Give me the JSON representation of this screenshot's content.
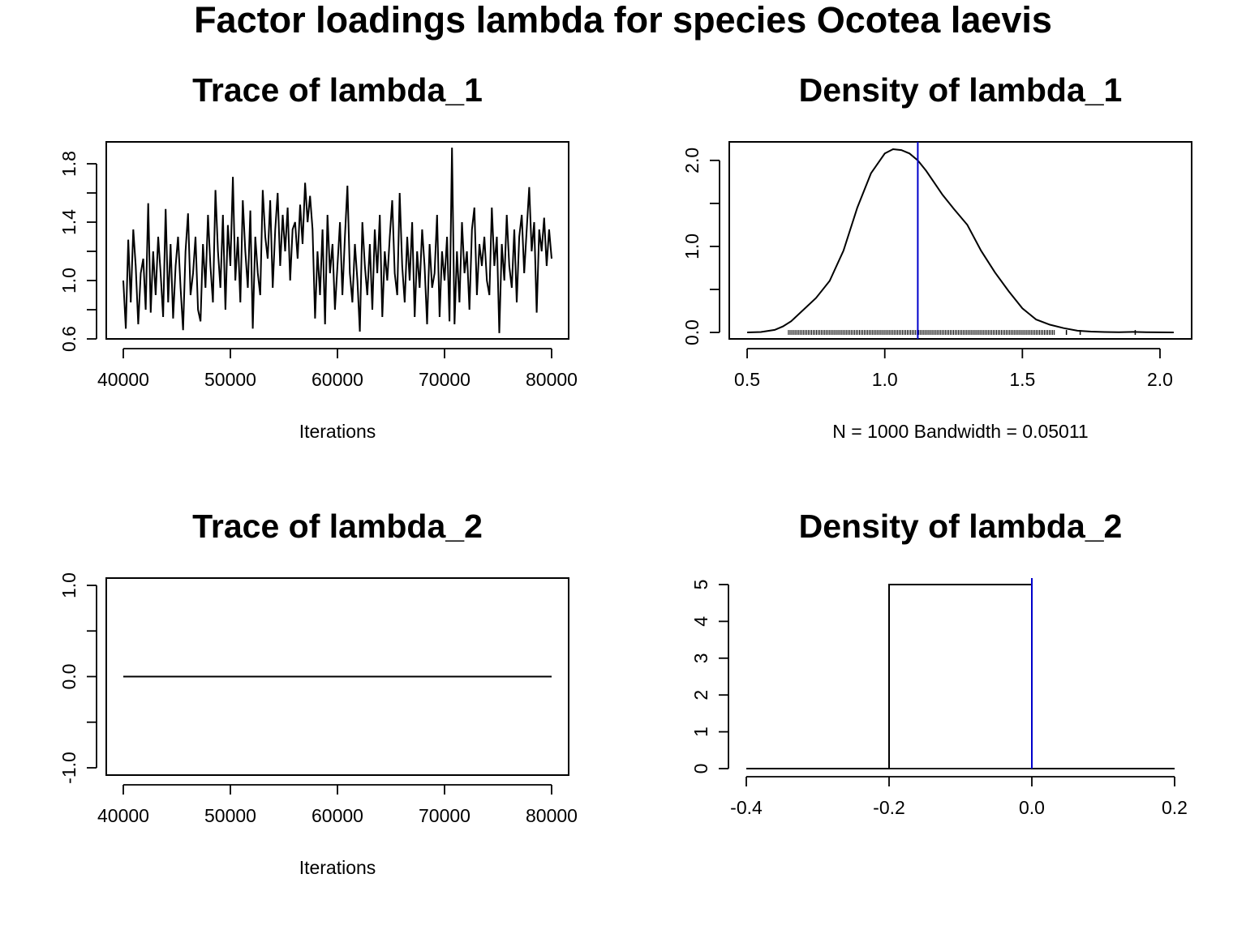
{
  "figure": {
    "title": "Factor loadings lambda for species  Ocotea laevis",
    "colors": {
      "line": "#000000",
      "mean_line": "#0000cc",
      "background": "#ffffff"
    }
  },
  "chart_data": [
    {
      "id": "trace1",
      "type": "line",
      "title": "Trace of lambda_1",
      "xlabel": "Iterations",
      "ylabel": "",
      "xlim": [
        40000,
        80000
      ],
      "ylim": [
        0.6,
        1.95
      ],
      "x_ticks": [
        40000,
        50000,
        60000,
        70000,
        80000
      ],
      "x_tick_labels": [
        "40000",
        "50000",
        "60000",
        "70000",
        "80000"
      ],
      "y_ticks": [
        0.6,
        0.8,
        1.0,
        1.2,
        1.4,
        1.6,
        1.8
      ],
      "y_tick_labels": [
        "0.6",
        "",
        "1.0",
        "",
        "1.4",
        "",
        "1.8"
      ],
      "series": [
        {
          "x_start": 40000,
          "x_end": 80000,
          "values": [
            1.0,
            0.67,
            1.28,
            0.85,
            1.35,
            1.1,
            0.7,
            1.05,
            1.15,
            0.8,
            1.53,
            0.78,
            1.2,
            0.9,
            1.3,
            1.05,
            0.75,
            1.49,
            0.85,
            1.25,
            0.74,
            1.1,
            1.3,
            0.95,
            0.66,
            1.2,
            1.46,
            0.9,
            1.05,
            1.3,
            0.8,
            0.72,
            1.25,
            0.95,
            1.45,
            1.1,
            0.85,
            1.62,
            1.2,
            0.95,
            1.45,
            0.8,
            1.38,
            1.1,
            1.71,
            1.0,
            1.3,
            0.85,
            1.55,
            1.2,
            0.95,
            1.48,
            0.67,
            1.3,
            1.05,
            0.9,
            1.62,
            1.3,
            1.15,
            1.55,
            0.95,
            1.35,
            1.6,
            1.1,
            1.45,
            1.2,
            1.5,
            1.0,
            1.35,
            1.4,
            1.15,
            1.52,
            1.25,
            1.67,
            1.4,
            1.58,
            1.35,
            0.74,
            1.2,
            0.9,
            1.35,
            0.7,
            1.45,
            1.05,
            1.25,
            0.8,
            1.1,
            1.4,
            0.9,
            1.3,
            1.65,
            1.05,
            0.85,
            1.25,
            1.0,
            0.65,
            1.4,
            1.1,
            0.9,
            1.25,
            0.8,
            1.35,
            1.05,
            1.45,
            0.75,
            1.2,
            1.0,
            1.3,
            1.55,
            1.05,
            0.9,
            1.6,
            1.1,
            0.85,
            1.3,
            1.0,
            1.4,
            0.75,
            1.2,
            0.95,
            1.35,
            1.1,
            0.7,
            1.25,
            0.95,
            1.05,
            1.45,
            0.75,
            1.2,
            1.0,
            1.3,
            0.72,
            1.91,
            0.7,
            1.2,
            0.85,
            1.4,
            1.05,
            1.2,
            0.8,
            1.35,
            1.5,
            0.9,
            1.25,
            1.1,
            1.3,
            1.0,
            0.9,
            1.5,
            1.1,
            1.3,
            0.64,
            1.25,
            1.0,
            1.45,
            1.1,
            0.95,
            1.35,
            0.85,
            1.3,
            1.45,
            1.05,
            1.35,
            1.64,
            1.2,
            1.4,
            0.78,
            1.35,
            1.2,
            1.43,
            1.1,
            1.35,
            1.15
          ]
        }
      ]
    },
    {
      "id": "density1",
      "type": "line",
      "title": "Density of lambda_1",
      "xlabel": "N = 1000   Bandwidth = 0.05011",
      "ylabel": "",
      "xlim": [
        0.435,
        2.115
      ],
      "ylim": [
        -0.075,
        2.215
      ],
      "x_ticks": [
        0.5,
        1.0,
        1.5,
        2.0
      ],
      "x_tick_labels": [
        "0.5",
        "1.0",
        "1.5",
        "2.0"
      ],
      "y_ticks": [
        0.0,
        0.5,
        1.0,
        1.5,
        2.0
      ],
      "y_tick_labels": [
        "0.0",
        "",
        "1.0",
        "",
        "2.0"
      ],
      "mean": 1.12,
      "series": [
        {
          "x": [
            0.5,
            0.55,
            0.6,
            0.63,
            0.66,
            0.7,
            0.75,
            0.8,
            0.85,
            0.9,
            0.95,
            1.0,
            1.03,
            1.06,
            1.09,
            1.12,
            1.15,
            1.18,
            1.21,
            1.25,
            1.3,
            1.35,
            1.4,
            1.45,
            1.5,
            1.55,
            1.6,
            1.65,
            1.7,
            1.75,
            1.8,
            1.85,
            1.9,
            1.95,
            2.0,
            2.05
          ],
          "y": [
            0.0,
            0.005,
            0.03,
            0.07,
            0.13,
            0.25,
            0.4,
            0.6,
            0.95,
            1.45,
            1.85,
            2.08,
            2.13,
            2.12,
            2.08,
            2.0,
            1.88,
            1.74,
            1.6,
            1.44,
            1.25,
            0.95,
            0.7,
            0.48,
            0.28,
            0.15,
            0.09,
            0.05,
            0.02,
            0.01,
            0.005,
            0.003,
            0.006,
            0.003,
            0.001,
            0.0
          ]
        }
      ],
      "rug_range": [
        0.65,
        1.91
      ]
    },
    {
      "id": "trace2",
      "type": "line",
      "title": "Trace of lambda_2",
      "xlabel": "Iterations",
      "ylabel": "",
      "xlim": [
        40000,
        80000
      ],
      "ylim": [
        -1.08,
        1.08
      ],
      "x_ticks": [
        40000,
        50000,
        60000,
        70000,
        80000
      ],
      "x_tick_labels": [
        "40000",
        "50000",
        "60000",
        "70000",
        "80000"
      ],
      "y_ticks": [
        -1.0,
        -0.5,
        0.0,
        0.5,
        1.0
      ],
      "y_tick_labels": [
        "-1.0",
        "",
        "0.0",
        "",
        "1.0"
      ],
      "series": [
        {
          "x": [
            40000,
            80000
          ],
          "y": [
            0,
            0
          ]
        }
      ]
    },
    {
      "id": "density2",
      "type": "line",
      "title": "Density of lambda_2",
      "xlabel": "",
      "ylabel": "",
      "xlim": [
        -0.4,
        0.2
      ],
      "ylim": [
        -0.2,
        5.2
      ],
      "x_ticks": [
        -0.4,
        -0.2,
        0.0,
        0.2
      ],
      "x_tick_labels": [
        "-0.4",
        "-0.2",
        "0.0",
        "0.2"
      ],
      "y_ticks": [
        0,
        1,
        2,
        3,
        4,
        5
      ],
      "y_tick_labels": [
        "0",
        "1",
        "2",
        "3",
        "4",
        "5"
      ],
      "mean": 0.0,
      "series": [
        {
          "x": [
            -0.4,
            -0.2,
            -0.2,
            0.0,
            0.0,
            0.2
          ],
          "y": [
            0,
            0,
            5,
            5,
            0,
            0
          ]
        }
      ]
    }
  ]
}
